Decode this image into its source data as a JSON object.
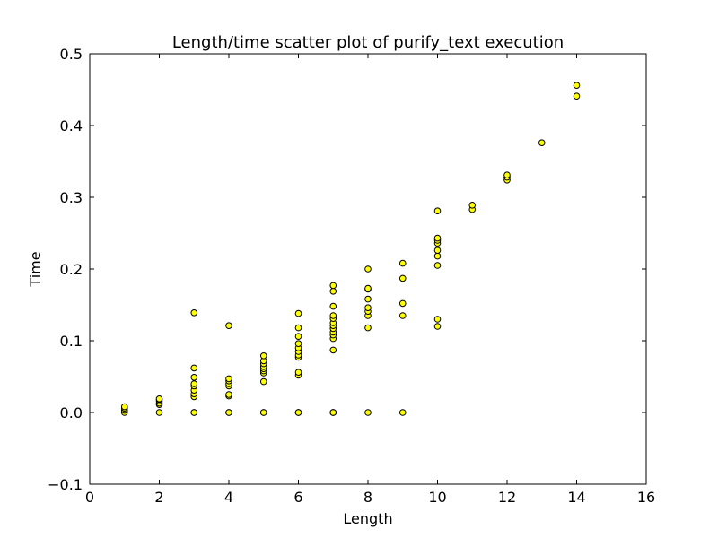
{
  "chart_data": {
    "type": "scatter",
    "title": "Length/time scatter plot of purify_text execution",
    "xlabel": "Length",
    "ylabel": "Time",
    "xlim": [
      0,
      16
    ],
    "ylim": [
      -0.1,
      0.5
    ],
    "xticks": [
      0,
      2,
      4,
      6,
      8,
      10,
      12,
      14,
      16
    ],
    "yticks": [
      -0.1,
      0.0,
      0.1,
      0.2,
      0.3,
      0.4,
      0.5
    ],
    "xtick_labels": [
      "0",
      "2",
      "4",
      "6",
      "8",
      "10",
      "12",
      "14",
      "16"
    ],
    "ytick_labels": [
      "−0.1",
      "0.0",
      "0.1",
      "0.2",
      "0.3",
      "0.4",
      "0.5"
    ],
    "grid": false,
    "marker_color": "#ffff00",
    "marker_edge_color": "#000000",
    "points": [
      [
        1,
        0.0
      ],
      [
        1,
        0.003
      ],
      [
        1,
        0.006
      ],
      [
        1,
        0.008
      ],
      [
        2,
        0.0
      ],
      [
        2,
        0.011
      ],
      [
        2,
        0.013
      ],
      [
        2,
        0.016
      ],
      [
        2,
        0.018
      ],
      [
        2,
        0.019
      ],
      [
        3,
        0.0
      ],
      [
        3,
        0.0
      ],
      [
        3,
        0.022
      ],
      [
        3,
        0.026
      ],
      [
        3,
        0.031
      ],
      [
        3,
        0.037
      ],
      [
        3,
        0.04
      ],
      [
        3,
        0.049
      ],
      [
        3,
        0.062
      ],
      [
        3,
        0.139
      ],
      [
        4,
        0.0
      ],
      [
        4,
        0.0
      ],
      [
        4,
        0.023
      ],
      [
        4,
        0.025
      ],
      [
        4,
        0.037
      ],
      [
        4,
        0.04
      ],
      [
        4,
        0.044
      ],
      [
        4,
        0.047
      ],
      [
        4,
        0.121
      ],
      [
        5,
        0.0
      ],
      [
        5,
        0.0
      ],
      [
        5,
        0.043
      ],
      [
        5,
        0.055
      ],
      [
        5,
        0.058
      ],
      [
        5,
        0.061
      ],
      [
        5,
        0.064
      ],
      [
        5,
        0.068
      ],
      [
        5,
        0.072
      ],
      [
        5,
        0.079
      ],
      [
        6,
        0.0
      ],
      [
        6,
        0.0
      ],
      [
        6,
        0.0
      ],
      [
        6,
        0.052
      ],
      [
        6,
        0.056
      ],
      [
        6,
        0.077
      ],
      [
        6,
        0.08
      ],
      [
        6,
        0.085
      ],
      [
        6,
        0.09
      ],
      [
        6,
        0.096
      ],
      [
        6,
        0.106
      ],
      [
        6,
        0.118
      ],
      [
        6,
        0.138
      ],
      [
        7,
        0.0
      ],
      [
        7,
        0.0
      ],
      [
        7,
        0.0
      ],
      [
        7,
        0.087
      ],
      [
        7,
        0.103
      ],
      [
        7,
        0.108
      ],
      [
        7,
        0.112
      ],
      [
        7,
        0.117
      ],
      [
        7,
        0.121
      ],
      [
        7,
        0.125
      ],
      [
        7,
        0.131
      ],
      [
        7,
        0.135
      ],
      [
        7,
        0.148
      ],
      [
        7,
        0.169
      ],
      [
        7,
        0.177
      ],
      [
        8,
        0.0
      ],
      [
        8,
        0.118
      ],
      [
        8,
        0.135
      ],
      [
        8,
        0.141
      ],
      [
        8,
        0.146
      ],
      [
        8,
        0.158
      ],
      [
        8,
        0.172
      ],
      [
        8,
        0.173
      ],
      [
        8,
        0.2
      ],
      [
        9,
        0.0
      ],
      [
        9,
        0.135
      ],
      [
        9,
        0.152
      ],
      [
        9,
        0.187
      ],
      [
        9,
        0.208
      ],
      [
        10,
        0.12
      ],
      [
        10,
        0.13
      ],
      [
        10,
        0.205
      ],
      [
        10,
        0.218
      ],
      [
        10,
        0.226
      ],
      [
        10,
        0.236
      ],
      [
        10,
        0.24
      ],
      [
        10,
        0.243
      ],
      [
        10,
        0.281
      ],
      [
        11,
        0.283
      ],
      [
        11,
        0.289
      ],
      [
        12,
        0.324
      ],
      [
        12,
        0.328
      ],
      [
        12,
        0.331
      ],
      [
        13,
        0.376
      ],
      [
        14,
        0.441
      ],
      [
        14,
        0.456
      ]
    ]
  }
}
